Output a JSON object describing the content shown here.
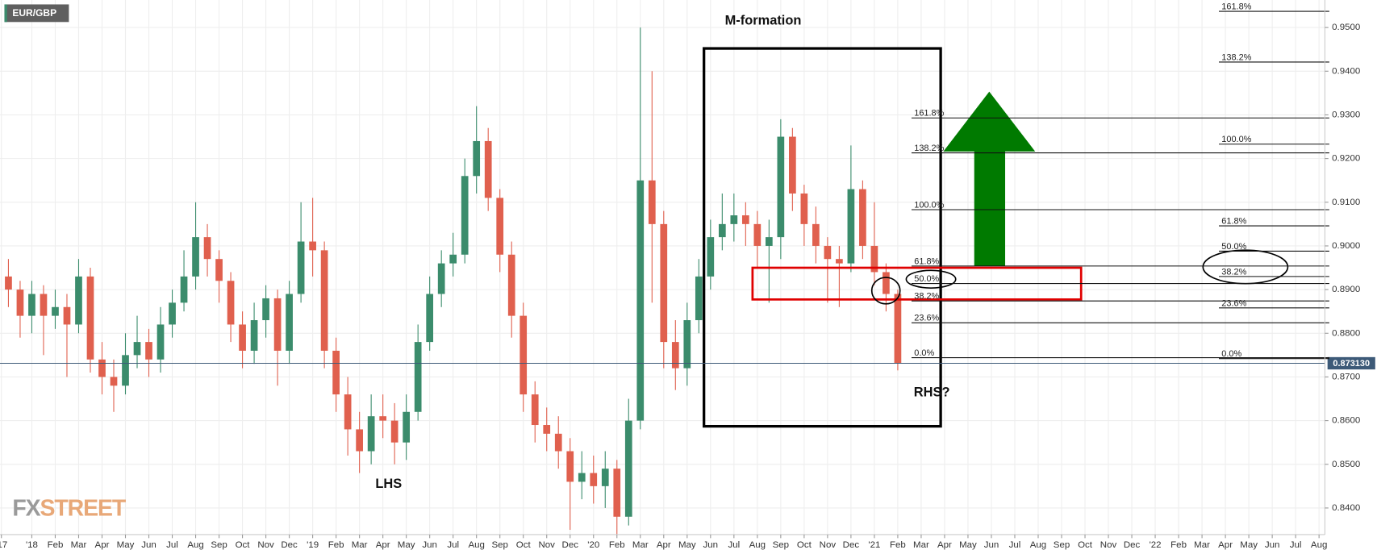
{
  "chart_data": {
    "type": "candlestick",
    "symbol": "EUR/GBP",
    "annotations": {
      "m_formation": "M-formation",
      "lhs": "LHS",
      "rhs": "RHS?"
    },
    "brand": {
      "fx": "FX",
      "street": "STREET"
    },
    "colors": {
      "up": "#3b8c6c",
      "down": "#e0604e",
      "grid": "#eeeeee",
      "price_line": "#3d5a78"
    },
    "grid": true,
    "xlim": [
      -1.36,
      55.25
    ],
    "ylim": [
      0.8339,
      0.9563
    ],
    "yticks": [
      {
        "value": 0.84,
        "label": "0.8400"
      },
      {
        "value": 0.85,
        "label": "0.8500"
      },
      {
        "value": 0.86,
        "label": "0.8600"
      },
      {
        "value": 0.87,
        "label": "0.8700"
      },
      {
        "value": 0.88,
        "label": "0.8800"
      },
      {
        "value": 0.89,
        "label": "0.8900"
      },
      {
        "value": 0.9,
        "label": "0.9000"
      },
      {
        "value": 0.91,
        "label": "0.9100"
      },
      {
        "value": 0.92,
        "label": "0.9200"
      },
      {
        "value": 0.93,
        "label": "0.9300"
      },
      {
        "value": 0.94,
        "label": "0.9400"
      },
      {
        "value": 0.95,
        "label": "0.9500"
      }
    ],
    "xticks": [
      {
        "value": -1.3,
        "label": "'17"
      },
      {
        "value": 0,
        "label": "'18"
      },
      {
        "value": 1,
        "label": "Feb"
      },
      {
        "value": 2,
        "label": "Mar"
      },
      {
        "value": 3,
        "label": "Apr"
      },
      {
        "value": 4,
        "label": "May"
      },
      {
        "value": 5,
        "label": "Jun"
      },
      {
        "value": 6,
        "label": "Jul"
      },
      {
        "value": 7,
        "label": "Aug"
      },
      {
        "value": 8,
        "label": "Sep"
      },
      {
        "value": 9,
        "label": "Oct"
      },
      {
        "value": 10,
        "label": "Nov"
      },
      {
        "value": 11,
        "label": "Dec"
      },
      {
        "value": 12,
        "label": "'19"
      },
      {
        "value": 13,
        "label": "Feb"
      },
      {
        "value": 14,
        "label": "Mar"
      },
      {
        "value": 15,
        "label": "Apr"
      },
      {
        "value": 16,
        "label": "May"
      },
      {
        "value": 17,
        "label": "Jun"
      },
      {
        "value": 18,
        "label": "Jul"
      },
      {
        "value": 19,
        "label": "Aug"
      },
      {
        "value": 20,
        "label": "Sep"
      },
      {
        "value": 21,
        "label": "Oct"
      },
      {
        "value": 22,
        "label": "Nov"
      },
      {
        "value": 23,
        "label": "Dec"
      },
      {
        "value": 24,
        "label": "'20"
      },
      {
        "value": 25,
        "label": "Feb"
      },
      {
        "value": 26,
        "label": "Mar"
      },
      {
        "value": 27,
        "label": "Apr"
      },
      {
        "value": 28,
        "label": "May"
      },
      {
        "value": 29,
        "label": "Jun"
      },
      {
        "value": 30,
        "label": "Jul"
      },
      {
        "value": 31,
        "label": "Aug"
      },
      {
        "value": 32,
        "label": "Sep"
      },
      {
        "value": 33,
        "label": "Oct"
      },
      {
        "value": 34,
        "label": "Nov"
      },
      {
        "value": 35,
        "label": "Dec"
      },
      {
        "value": 36,
        "label": "'21"
      },
      {
        "value": 37,
        "label": "Feb"
      },
      {
        "value": 38,
        "label": "Mar"
      },
      {
        "value": 39,
        "label": "Apr"
      },
      {
        "value": 40,
        "label": "May"
      },
      {
        "value": 41,
        "label": "Jun"
      },
      {
        "value": 42,
        "label": "Jul"
      },
      {
        "value": 43,
        "label": "Aug"
      },
      {
        "value": 44,
        "label": "Sep"
      },
      {
        "value": 45,
        "label": "Oct"
      },
      {
        "value": 46,
        "label": "Nov"
      },
      {
        "value": 47,
        "label": "Dec"
      },
      {
        "value": 48,
        "label": "'22"
      },
      {
        "value": 49,
        "label": "Feb"
      },
      {
        "value": 50,
        "label": "Mar"
      },
      {
        "value": 51,
        "label": "Apr"
      },
      {
        "value": 52,
        "label": "May"
      },
      {
        "value": 53,
        "label": "Jun"
      },
      {
        "value": 54,
        "label": "Jul"
      },
      {
        "value": 55,
        "label": "Aug"
      }
    ],
    "last_price": {
      "value": 0.87313,
      "label": "0.873130"
    },
    "x": [
      -1.0,
      -0.5,
      0.0,
      0.5,
      1.0,
      1.5,
      2.0,
      2.5,
      3.0,
      3.5,
      4.0,
      4.5,
      5.0,
      5.5,
      6.0,
      6.5,
      7.0,
      7.5,
      8.0,
      8.5,
      9.0,
      9.5,
      10.0,
      10.5,
      11.0,
      11.5,
      12.0,
      12.5,
      13.0,
      13.5,
      14.0,
      14.5,
      15.0,
      15.5,
      16.0,
      16.5,
      17.0,
      17.5,
      18.0,
      18.5,
      19.0,
      19.5,
      20.0,
      20.5,
      21.0,
      21.5,
      22.0,
      22.5,
      23.0,
      23.5,
      24.0,
      24.5,
      25.0,
      25.5,
      26.0,
      26.5,
      27.0,
      27.5,
      28.0,
      28.5,
      29.0,
      29.5,
      30.0,
      30.5,
      31.0,
      31.5,
      32.0,
      32.5,
      33.0,
      33.5,
      34.0,
      34.5,
      35.0,
      35.5,
      36.0,
      36.5,
      37.0
    ],
    "open": [
      0.893,
      0.89,
      0.884,
      0.889,
      0.884,
      0.886,
      0.882,
      0.893,
      0.874,
      0.87,
      0.868,
      0.875,
      0.878,
      0.874,
      0.882,
      0.887,
      0.893,
      0.902,
      0.897,
      0.892,
      0.882,
      0.876,
      0.883,
      0.888,
      0.876,
      0.889,
      0.901,
      0.899,
      0.876,
      0.866,
      0.858,
      0.853,
      0.861,
      0.86,
      0.855,
      0.862,
      0.878,
      0.889,
      0.896,
      0.898,
      0.916,
      0.924,
      0.911,
      0.898,
      0.884,
      0.866,
      0.859,
      0.857,
      0.853,
      0.846,
      0.848,
      0.845,
      0.849,
      0.838,
      0.86,
      0.915,
      0.905,
      0.878,
      0.872,
      0.883,
      0.893,
      0.902,
      0.905,
      0.907,
      0.905,
      0.9,
      0.902,
      0.925,
      0.912,
      0.905,
      0.9,
      0.897,
      0.896,
      0.913,
      0.9,
      0.894,
      0.889
    ],
    "high": [
      0.897,
      0.892,
      0.892,
      0.891,
      0.89,
      0.889,
      0.897,
      0.895,
      0.878,
      0.874,
      0.88,
      0.884,
      0.881,
      0.886,
      0.89,
      0.899,
      0.91,
      0.905,
      0.899,
      0.894,
      0.885,
      0.887,
      0.891,
      0.89,
      0.892,
      0.91,
      0.911,
      0.901,
      0.879,
      0.87,
      0.862,
      0.866,
      0.866,
      0.864,
      0.866,
      0.882,
      0.893,
      0.899,
      0.903,
      0.92,
      0.932,
      0.927,
      0.913,
      0.901,
      0.887,
      0.869,
      0.863,
      0.861,
      0.856,
      0.853,
      0.852,
      0.853,
      0.851,
      0.865,
      0.95,
      0.94,
      0.908,
      0.883,
      0.887,
      0.897,
      0.906,
      0.912,
      0.912,
      0.91,
      0.908,
      0.906,
      0.929,
      0.927,
      0.914,
      0.909,
      0.902,
      0.9,
      0.923,
      0.915,
      0.91,
      0.896,
      0.89
    ],
    "low": [
      0.886,
      0.879,
      0.88,
      0.875,
      0.881,
      0.87,
      0.88,
      0.871,
      0.866,
      0.862,
      0.866,
      0.872,
      0.87,
      0.871,
      0.879,
      0.885,
      0.89,
      0.893,
      0.887,
      0.878,
      0.872,
      0.873,
      0.879,
      0.868,
      0.873,
      0.887,
      0.893,
      0.872,
      0.862,
      0.852,
      0.848,
      0.85,
      0.856,
      0.85,
      0.851,
      0.86,
      0.876,
      0.886,
      0.893,
      0.896,
      0.912,
      0.908,
      0.894,
      0.879,
      0.862,
      0.855,
      0.853,
      0.849,
      0.835,
      0.842,
      0.841,
      0.84,
      0.834,
      0.836,
      0.858,
      0.887,
      0.872,
      0.867,
      0.868,
      0.88,
      0.89,
      0.899,
      0.901,
      0.9,
      0.895,
      0.887,
      0.897,
      0.908,
      0.9,
      0.896,
      0.887,
      0.886,
      0.894,
      0.897,
      0.891,
      0.885,
      0.8715
    ],
    "close": [
      0.89,
      0.884,
      0.889,
      0.884,
      0.886,
      0.882,
      0.893,
      0.874,
      0.87,
      0.868,
      0.875,
      0.878,
      0.874,
      0.882,
      0.887,
      0.893,
      0.902,
      0.897,
      0.892,
      0.882,
      0.876,
      0.883,
      0.888,
      0.876,
      0.889,
      0.901,
      0.899,
      0.876,
      0.866,
      0.858,
      0.853,
      0.861,
      0.86,
      0.855,
      0.862,
      0.878,
      0.889,
      0.896,
      0.898,
      0.916,
      0.924,
      0.911,
      0.898,
      0.884,
      0.866,
      0.859,
      0.857,
      0.853,
      0.846,
      0.848,
      0.845,
      0.849,
      0.838,
      0.86,
      0.915,
      0.905,
      0.878,
      0.872,
      0.883,
      0.893,
      0.902,
      0.905,
      0.907,
      0.905,
      0.9,
      0.902,
      0.925,
      0.912,
      0.905,
      0.9,
      0.897,
      0.896,
      0.913,
      0.9,
      0.894,
      0.889,
      0.8731
    ],
    "fib_sets": [
      [
        {
          "label": "161.8%",
          "value": 0.9293
        },
        {
          "label": "138.2%",
          "value": 0.9213
        },
        {
          "label": "100.0%",
          "value": 0.9083
        },
        {
          "label": "61.8%",
          "value": 0.8954
        },
        {
          "label": "50.0%",
          "value": 0.8914
        },
        {
          "label": "38.2%",
          "value": 0.8874
        },
        {
          "label": "23.6%",
          "value": 0.8824
        },
        {
          "label": "0.0%",
          "value": 0.8744
        }
      ],
      [
        {
          "label": "161.8%",
          "value": 0.9537
        },
        {
          "label": "138.2%",
          "value": 0.9421
        },
        {
          "label": "100.0%",
          "value": 0.9233
        },
        {
          "label": "61.8%",
          "value": 0.9046
        },
        {
          "label": "50.0%",
          "value": 0.8988
        },
        {
          "label": "38.2%",
          "value": 0.893
        },
        {
          "label": "23.6%",
          "value": 0.8858
        },
        {
          "label": "0.0%",
          "value": 0.8742
        }
      ]
    ]
  }
}
